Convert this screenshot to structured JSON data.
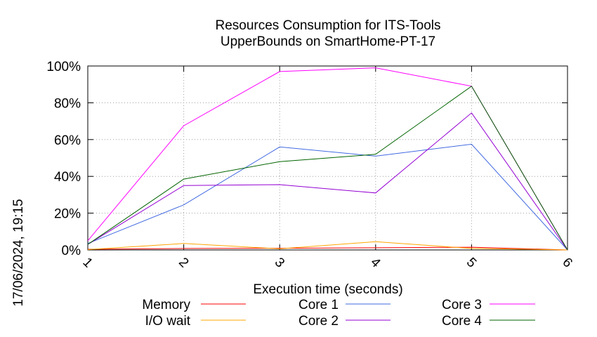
{
  "chart_data": {
    "type": "line",
    "title_line1": "Resources Consumption for ITS-Tools",
    "title_line2": "UpperBounds on SmartHome-PT-17",
    "xlabel": "Execution time (seconds)",
    "ylabel": "",
    "timestamp": "17/06/2024, 19:15",
    "x": [
      1,
      2,
      3,
      4,
      5,
      6
    ],
    "xlim": [
      1,
      6
    ],
    "ylim": [
      0,
      100
    ],
    "x_ticks": [
      "1",
      "2",
      "3",
      "4",
      "5",
      "6"
    ],
    "y_ticks": [
      "0%",
      "20%",
      "40%",
      "60%",
      "80%",
      "100%"
    ],
    "grid": true,
    "legend_position": "bottom",
    "series": [
      {
        "name": "Memory",
        "color": "#ff0000",
        "values": [
          0.4,
          0.8,
          0.9,
          1.2,
          1.5,
          0
        ]
      },
      {
        "name": "I/O wait",
        "color": "#ffa500",
        "values": [
          0.2,
          3.5,
          0.6,
          4.5,
          0.8,
          0
        ]
      },
      {
        "name": "Core 1",
        "color": "#4169e1",
        "values": [
          3.5,
          24.5,
          56,
          51,
          57.5,
          0
        ]
      },
      {
        "name": "Core 2",
        "color": "#9400d3",
        "values": [
          3,
          35,
          35.5,
          31,
          74.5,
          0
        ]
      },
      {
        "name": "Core 3",
        "color": "#ff00ff",
        "values": [
          5,
          67.5,
          97,
          99,
          89,
          0
        ]
      },
      {
        "name": "Core 4",
        "color": "#006400",
        "values": [
          3,
          38.5,
          48,
          52,
          89,
          0
        ]
      }
    ]
  }
}
